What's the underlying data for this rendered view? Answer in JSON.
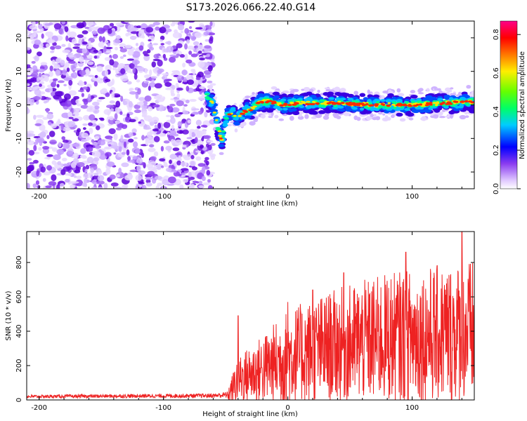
{
  "title": "S173.2026.066.22.40.G14",
  "colors": {
    "snr_line": "#ee2222",
    "axis": "#000000"
  },
  "chart_data": [
    {
      "type": "heatmap",
      "xlabel": "Height of straight line (km)",
      "ylabel": "Frequency (Hz)",
      "xlim": [
        -210,
        150
      ],
      "ylim": [
        -25,
        25
      ],
      "x_ticks": [
        {
          "value": -200,
          "label": "-200"
        },
        {
          "value": -100,
          "label": "-100"
        },
        {
          "value": 0,
          "label": "0"
        },
        {
          "value": 100,
          "label": "100"
        }
      ],
      "y_ticks": [
        {
          "value": 20,
          "label": "20"
        },
        {
          "value": 10,
          "label": "10"
        },
        {
          "value": 0,
          "label": "0"
        },
        {
          "value": -10,
          "label": "-10"
        },
        {
          "value": -20,
          "label": "-20"
        }
      ],
      "noise_region_x": [
        -210,
        -60
      ],
      "ridge": [
        {
          "x": -65,
          "y": 3
        },
        {
          "x": -60,
          "y": 0
        },
        {
          "x": -57,
          "y": -5
        },
        {
          "x": -53,
          "y": -11
        },
        {
          "x": -50,
          "y": -4
        },
        {
          "x": -45,
          "y": -2
        },
        {
          "x": -40,
          "y": -4
        },
        {
          "x": -35,
          "y": -2
        },
        {
          "x": -28,
          "y": -1
        },
        {
          "x": -22,
          "y": 1
        },
        {
          "x": -15,
          "y": 1
        },
        {
          "x": -5,
          "y": 0
        },
        {
          "x": 10,
          "y": 0.5
        },
        {
          "x": 40,
          "y": 0.5
        },
        {
          "x": 70,
          "y": 0
        },
        {
          "x": 100,
          "y": 0
        },
        {
          "x": 125,
          "y": 0.5
        },
        {
          "x": 150,
          "y": 1
        }
      ],
      "colorbar": {
        "label": "Normalized spectral amplitude",
        "range": [
          0.0,
          0.87
        ],
        "ticks": [
          {
            "value": 0.0,
            "label": "0.0"
          },
          {
            "value": 0.2,
            "label": "0.2"
          },
          {
            "value": 0.4,
            "label": "0.4"
          },
          {
            "value": 0.6,
            "label": "0.6"
          },
          {
            "value": 0.8,
            "label": "0.8"
          }
        ]
      }
    },
    {
      "type": "line",
      "xlabel": "Height of straight line (km)",
      "ylabel": "SNR (10 * v/v)",
      "xlim": [
        -210,
        150
      ],
      "ylim": [
        0,
        980
      ],
      "x_ticks": [
        {
          "value": -200,
          "label": "-200"
        },
        {
          "value": -100,
          "label": "-100"
        },
        {
          "value": 0,
          "label": "0"
        },
        {
          "value": 100,
          "label": "100"
        }
      ],
      "y_ticks": [
        {
          "value": 0,
          "label": "0"
        },
        {
          "value": 200,
          "label": "200"
        },
        {
          "value": 400,
          "label": "400"
        },
        {
          "value": 600,
          "label": "600"
        },
        {
          "value": 800,
          "label": "800"
        }
      ],
      "envelope": [
        {
          "x": -210,
          "base": 20,
          "amp": 18
        },
        {
          "x": -60,
          "base": 25,
          "amp": 25
        },
        {
          "x": -48,
          "base": 30,
          "amp": 40
        },
        {
          "x": -40,
          "base": 120,
          "amp": 140
        },
        {
          "x": -20,
          "base": 180,
          "amp": 200
        },
        {
          "x": 0,
          "base": 250,
          "amp": 280
        },
        {
          "x": 40,
          "base": 320,
          "amp": 330
        },
        {
          "x": 80,
          "base": 360,
          "amp": 380
        },
        {
          "x": 150,
          "base": 400,
          "amp": 420
        }
      ],
      "spikes": [
        {
          "x": -40,
          "y": 490
        },
        {
          "x": 0,
          "y": 570
        },
        {
          "x": 20,
          "y": 640
        },
        {
          "x": 45,
          "y": 740
        },
        {
          "x": 95,
          "y": 860
        },
        {
          "x": 140,
          "y": 980
        }
      ]
    }
  ]
}
